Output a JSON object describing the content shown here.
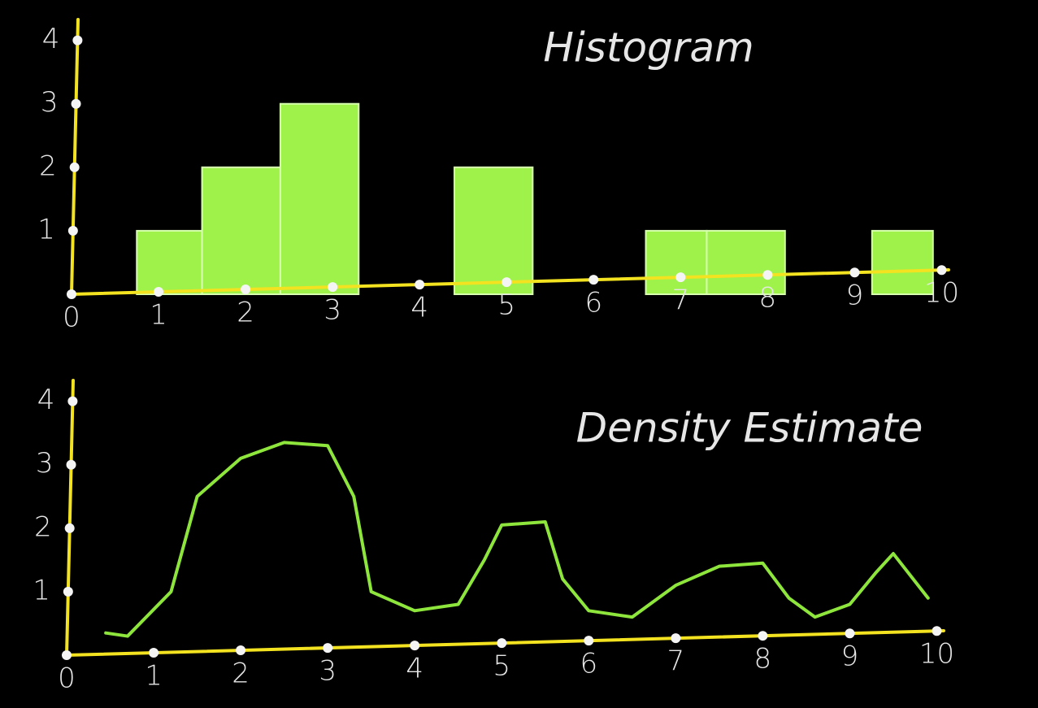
{
  "chart_data": [
    {
      "type": "histogram",
      "title": "Histogram",
      "bins": [
        0.75,
        1.5,
        2.4,
        3.3,
        4.4,
        5.3,
        6.6,
        7.3,
        8.2,
        9.2,
        9.9
      ],
      "values": [
        1,
        2,
        3,
        0,
        2,
        0,
        1,
        1,
        0,
        1
      ],
      "color": "#9ef24a",
      "xlim": [
        0,
        10.5
      ],
      "xticks": [
        0,
        1,
        2,
        3,
        4,
        5,
        6,
        7,
        8,
        9,
        10
      ],
      "ylim": [
        0,
        4.2
      ],
      "yticks": [
        1,
        2,
        3,
        4
      ]
    },
    {
      "type": "line",
      "title": "Density Estimate",
      "x": [
        0.45,
        0.7,
        1.2,
        1.5,
        2,
        2.5,
        3,
        3.3,
        3.5,
        4,
        4.5,
        4.8,
        5,
        5.5,
        5.7,
        6,
        6.5,
        7,
        7.5,
        8,
        8.3,
        8.6,
        9,
        9.3,
        9.5,
        9.9
      ],
      "values": [
        0.35,
        0.3,
        1,
        2.5,
        3.1,
        3.35,
        3.3,
        2.5,
        1,
        0.7,
        0.8,
        1.5,
        2.05,
        2.1,
        1.2,
        0.7,
        0.6,
        1.1,
        1.4,
        1.45,
        0.9,
        0.6,
        0.8,
        1.3,
        1.6,
        0.9
      ],
      "color": "#8ee63c",
      "xlim": [
        0,
        10.5
      ],
      "xticks": [
        0,
        1,
        2,
        3,
        4,
        5,
        6,
        7,
        8,
        9,
        10
      ],
      "ylim": [
        0,
        4.2
      ],
      "yticks": [
        1,
        2,
        3,
        4
      ]
    }
  ]
}
